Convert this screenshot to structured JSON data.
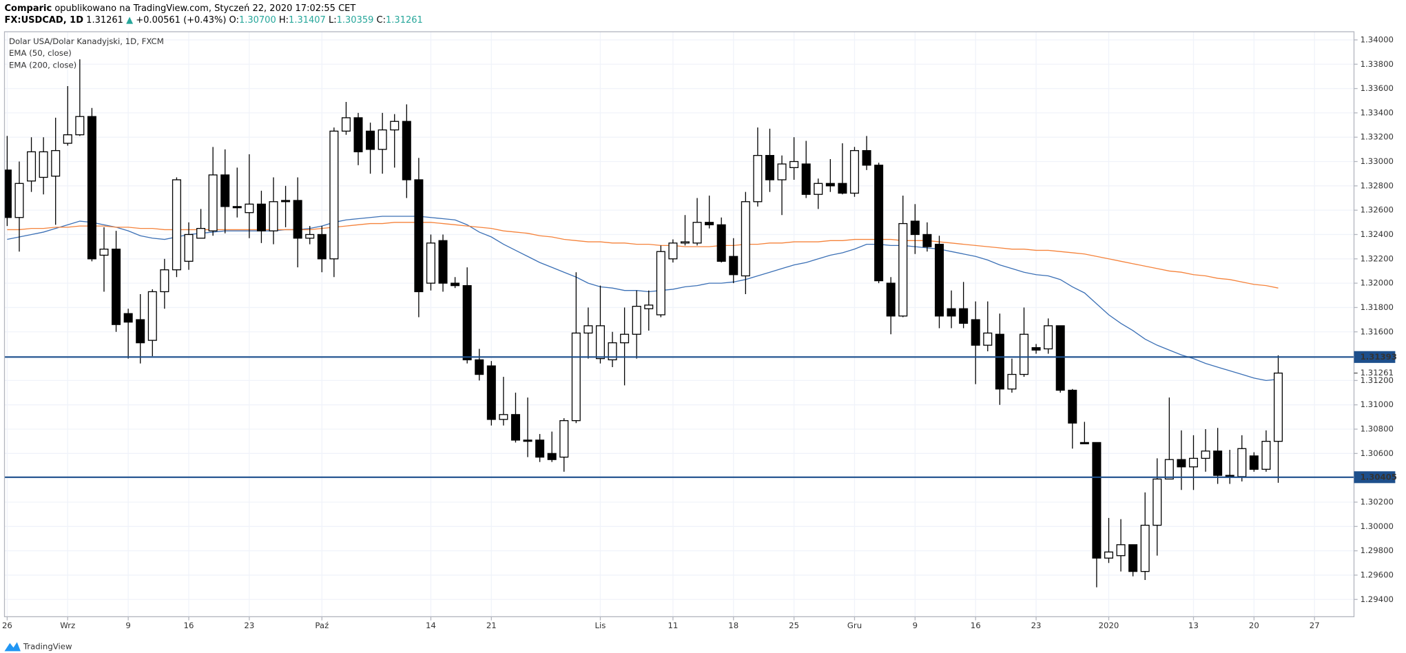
{
  "header": {
    "publisher": "Comparic",
    "published": "opublikowano na TradingView.com, Styczeń 22, 2020 17:02:55 CET",
    "symbol": "FX:USDCAD, 1D",
    "last": "1.31261",
    "change": "+0.00561 (+0.43%)",
    "ohlc": [
      {
        "label": "O:",
        "value": "1.30700"
      },
      {
        "label": "H:",
        "value": "1.31407"
      },
      {
        "label": "L:",
        "value": "1.30359"
      },
      {
        "label": "C:",
        "value": "1.31261"
      }
    ]
  },
  "footer": {
    "brand": "TradingView"
  },
  "chart_data": {
    "type": "candlestick",
    "title": "Dolar USA/Dolar Kanadyjski, 1D, FXCM",
    "categories": [
      "26",
      null,
      null,
      null,
      null,
      "Wrz",
      null,
      null,
      null,
      null,
      "9",
      null,
      null,
      null,
      null,
      "16",
      null,
      null,
      null,
      null,
      "23",
      null,
      null,
      null,
      null,
      null,
      "Paź",
      null,
      null,
      null,
      null,
      null,
      null,
      null,
      null,
      "14",
      null,
      null,
      null,
      null,
      "21",
      null,
      null,
      null,
      null,
      null,
      null,
      null,
      null,
      "Lis",
      null,
      null,
      null,
      null,
      null,
      "11",
      null,
      null,
      null,
      null,
      "18",
      null,
      null,
      null,
      null,
      "25",
      null,
      null,
      null,
      null,
      "Gru",
      null,
      null,
      null,
      null,
      "9",
      null,
      null,
      null,
      null,
      "16",
      null,
      null,
      null,
      null,
      "23",
      null,
      null,
      null,
      null,
      null,
      "2020",
      null,
      null,
      null,
      null,
      null,
      null,
      "13",
      null,
      null,
      null,
      null,
      "20",
      null,
      null,
      null,
      null,
      "27"
    ],
    "open": [
      1.3293,
      1.3254,
      1.3284,
      1.3287,
      1.3288,
      1.3315,
      1.3322,
      1.3337,
      1.3223,
      1.3228,
      1.3175,
      1.317,
      1.3153,
      1.3193,
      1.3211,
      1.3218,
      1.3237,
      1.3243,
      1.3289,
      1.3263,
      1.3258,
      1.3265,
      1.3243,
      1.3268,
      1.3268,
      1.3237,
      1.324,
      1.322,
      1.3325,
      1.3336,
      1.3325,
      1.331,
      1.3326,
      1.3333,
      1.3285,
      1.32,
      1.3235,
      1.32,
      1.3198,
      1.3137,
      1.3132,
      1.3088,
      1.3092,
      1.3071,
      1.3071,
      1.306,
      1.3057,
      1.3087,
      1.3159,
      1.3138,
      1.3137,
      1.3151,
      1.3158,
      1.3179,
      1.3174,
      1.322,
      1.3233,
      1.3233,
      1.325,
      1.3248,
      1.3222,
      1.3206,
      1.3267,
      1.3305,
      1.3285,
      1.3295,
      1.3298,
      1.3273,
      1.3282,
      1.3282,
      1.3274,
      1.3309,
      1.3297,
      1.32,
      1.3173,
      1.3251,
      1.324,
      1.3232,
      1.3179,
      1.3179,
      1.317,
      1.3149,
      1.3158,
      1.3113,
      1.3125,
      1.3147,
      1.3146,
      1.3165,
      1.3112,
      1.3069,
      1.3069,
      1.2974,
      1.2976,
      1.2985,
      1.2963,
      1.3001,
      1.3039,
      1.3055,
      1.3049,
      1.3056,
      1.3062,
      1.3042,
      1.3041,
      1.3058,
      1.3047,
      1.307,
      null,
      null,
      null
    ],
    "close": [
      1.3254,
      1.3282,
      1.3308,
      1.3308,
      1.3309,
      1.3322,
      1.3337,
      1.322,
      1.3228,
      1.3166,
      1.3168,
      1.3151,
      1.3193,
      1.3211,
      1.3285,
      1.324,
      1.3245,
      1.3289,
      1.3263,
      1.3262,
      1.3265,
      1.3243,
      1.3267,
      1.3267,
      1.3237,
      1.324,
      1.322,
      1.3325,
      1.3336,
      1.3308,
      1.331,
      1.3326,
      1.3333,
      1.3285,
      1.3193,
      1.3233,
      1.32,
      1.3198,
      1.3137,
      1.3125,
      1.3088,
      1.3092,
      1.3071,
      1.307,
      1.3057,
      1.3055,
      1.3087,
      1.3159,
      1.3165,
      1.3165,
      1.3151,
      1.3158,
      1.3181,
      1.3182,
      1.3226,
      1.3233,
      1.3234,
      1.325,
      1.3248,
      1.3218,
      1.3207,
      1.3267,
      1.3305,
      1.3285,
      1.3298,
      1.33,
      1.3273,
      1.3282,
      1.328,
      1.3274,
      1.3309,
      1.3297,
      1.3202,
      1.3173,
      1.3249,
      1.324,
      1.323,
      1.3173,
      1.3173,
      1.3167,
      1.3149,
      1.3159,
      1.3113,
      1.3125,
      1.3158,
      1.3145,
      1.3165,
      1.3112,
      1.3085,
      1.3068,
      1.2974,
      1.2979,
      1.2985,
      1.2963,
      1.3001,
      1.3039,
      1.3055,
      1.3049,
      1.3056,
      1.3062,
      1.3042,
      1.3041,
      1.3064,
      1.3047,
      1.307,
      1.31261,
      null,
      null,
      null
    ],
    "high": [
      1.3321,
      1.33,
      1.332,
      1.332,
      1.3336,
      1.3362,
      1.3384,
      1.3344,
      1.3246,
      1.3243,
      1.3179,
      1.3191,
      1.3195,
      1.322,
      1.3287,
      1.325,
      1.3261,
      1.3312,
      1.331,
      1.3295,
      1.3306,
      1.3276,
      1.3287,
      1.328,
      1.3287,
      1.3247,
      1.3247,
      1.3328,
      1.3349,
      1.334,
      1.3332,
      1.334,
      1.3339,
      1.3347,
      1.3303,
      1.324,
      1.324,
      1.3205,
      1.3213,
      1.3146,
      1.3136,
      1.3123,
      1.311,
      1.3106,
      1.3076,
      1.3078,
      1.3089,
      1.3209,
      1.318,
      1.3198,
      1.316,
      1.318,
      1.3194,
      1.3194,
      1.3231,
      1.3236,
      1.3256,
      1.327,
      1.3272,
      1.3254,
      1.3237,
      1.3275,
      1.3328,
      1.3327,
      1.3305,
      1.332,
      1.3317,
      1.3286,
      1.3302,
      1.3315,
      1.3312,
      1.3321,
      1.3299,
      1.3205,
      1.3272,
      1.3265,
      1.325,
      1.3239,
      1.3194,
      1.3201,
      1.3185,
      1.3185,
      1.3175,
      1.3138,
      1.318,
      1.315,
      1.3171,
      1.3165,
      1.3113,
      1.3086,
      1.3069,
      1.3007,
      1.3006,
      1.2985,
      1.3028,
      1.3056,
      1.3106,
      1.3079,
      1.3075,
      1.308,
      1.3081,
      1.3063,
      1.3075,
      1.3061,
      1.3079,
      1.31407,
      null,
      null,
      null
    ],
    "low": [
      1.3247,
      1.3226,
      1.3275,
      1.3273,
      1.3248,
      1.3313,
      1.3321,
      1.3218,
      1.3193,
      1.316,
      1.3138,
      1.3134,
      1.314,
      1.3179,
      1.3205,
      1.3211,
      1.3237,
      1.3239,
      1.3241,
      1.3254,
      1.3237,
      1.3233,
      1.3232,
      1.3246,
      1.3213,
      1.3232,
      1.3209,
      1.3205,
      1.3322,
      1.3297,
      1.329,
      1.329,
      1.3295,
      1.327,
      1.3172,
      1.3194,
      1.3193,
      1.3196,
      1.3134,
      1.312,
      1.3083,
      1.3083,
      1.3069,
      1.3057,
      1.3053,
      1.3053,
      1.3045,
      1.3085,
      1.3138,
      1.3134,
      1.3131,
      1.3116,
      1.3138,
      1.3161,
      1.3172,
      1.3217,
      1.3231,
      1.3231,
      1.3245,
      1.3217,
      1.32,
      1.3191,
      1.3263,
      1.3275,
      1.3256,
      1.3285,
      1.327,
      1.3261,
      1.3275,
      1.3273,
      1.3271,
      1.3293,
      1.32,
      1.3158,
      1.3172,
      1.3224,
      1.3226,
      1.3163,
      1.3163,
      1.3163,
      1.3117,
      1.3144,
      1.31,
      1.311,
      1.3123,
      1.3142,
      1.3142,
      1.311,
      1.3064,
      1.3068,
      1.295,
      1.297,
      1.2963,
      1.2959,
      1.2956,
      1.2976,
      1.3039,
      1.303,
      1.303,
      1.3045,
      1.3035,
      1.3035,
      1.3037,
      1.3045,
      1.3045,
      1.30359,
      null,
      null,
      null
    ],
    "up_color": "#ffffff",
    "down_color": "#000000",
    "series": [
      {
        "name": "EMA (50, close)",
        "color": "#3a6fb5",
        "values": [
          1.3236,
          1.3238,
          1.324,
          1.3242,
          1.3245,
          1.3248,
          1.3251,
          1.325,
          1.3248,
          1.3246,
          1.3243,
          1.3239,
          1.3237,
          1.3236,
          1.3238,
          1.324,
          1.3241,
          1.3242,
          1.3243,
          1.3243,
          1.3243,
          1.3243,
          1.3243,
          1.3244,
          1.3244,
          1.3245,
          1.3247,
          1.325,
          1.3252,
          1.3253,
          1.3254,
          1.3255,
          1.3255,
          1.3255,
          1.3255,
          1.3254,
          1.3253,
          1.3252,
          1.3248,
          1.3242,
          1.3238,
          1.3232,
          1.3227,
          1.3222,
          1.3217,
          1.3213,
          1.3209,
          1.3205,
          1.32,
          1.3197,
          1.3196,
          1.3194,
          1.3194,
          1.3193,
          1.3194,
          1.3195,
          1.3197,
          1.3198,
          1.32,
          1.32,
          1.3201,
          1.3203,
          1.3206,
          1.3209,
          1.3212,
          1.3215,
          1.3217,
          1.322,
          1.3223,
          1.3225,
          1.3228,
          1.3232,
          1.3232,
          1.3231,
          1.3231,
          1.323,
          1.3229,
          1.3228,
          1.3226,
          1.3224,
          1.3222,
          1.3219,
          1.3215,
          1.3212,
          1.3209,
          1.3207,
          1.3206,
          1.3203,
          1.3197,
          1.3192,
          1.3183,
          1.3174,
          1.3167,
          1.3161,
          1.3154,
          1.3149,
          1.3145,
          1.3141,
          1.3138,
          1.3134,
          1.3131,
          1.3128,
          1.3125,
          1.3122,
          1.312,
          1.3121,
          null,
          null,
          null
        ]
      },
      {
        "name": "EMA (200, close)",
        "color": "#f5823a",
        "values": [
          1.3244,
          1.3244,
          1.3245,
          1.3245,
          1.3246,
          1.3246,
          1.3247,
          1.3247,
          1.3247,
          1.3246,
          1.3246,
          1.3245,
          1.3245,
          1.3244,
          1.3244,
          1.3244,
          1.3244,
          1.3244,
          1.3244,
          1.3244,
          1.3244,
          1.3244,
          1.3244,
          1.3244,
          1.3244,
          1.3244,
          1.3245,
          1.3246,
          1.3247,
          1.3248,
          1.3249,
          1.3249,
          1.325,
          1.325,
          1.325,
          1.325,
          1.3249,
          1.3248,
          1.3247,
          1.3246,
          1.3245,
          1.3243,
          1.3242,
          1.3241,
          1.3239,
          1.3238,
          1.3236,
          1.3235,
          1.3234,
          1.3234,
          1.3233,
          1.3233,
          1.3232,
          1.3232,
          1.3231,
          1.3231,
          1.323,
          1.323,
          1.323,
          1.3231,
          1.3231,
          1.3232,
          1.3232,
          1.3233,
          1.3233,
          1.3234,
          1.3234,
          1.3234,
          1.3235,
          1.3235,
          1.3236,
          1.3236,
          1.3236,
          1.3236,
          1.3235,
          1.3235,
          1.3235,
          1.3234,
          1.3233,
          1.3232,
          1.3231,
          1.323,
          1.3229,
          1.3228,
          1.3228,
          1.3227,
          1.3227,
          1.3226,
          1.3225,
          1.3224,
          1.3222,
          1.322,
          1.3218,
          1.3216,
          1.3214,
          1.3212,
          1.321,
          1.3209,
          1.3207,
          1.3206,
          1.3204,
          1.3203,
          1.3201,
          1.3199,
          1.3198,
          1.3196,
          null,
          null,
          null
        ]
      }
    ],
    "ylim": [
      1.29258,
      1.34067
    ],
    "yticks": [
      {
        "value": 1.294,
        "label": "1.29400"
      },
      {
        "value": 1.296,
        "label": "1.29600"
      },
      {
        "value": 1.298,
        "label": "1.29800"
      },
      {
        "value": 1.3,
        "label": "1.30000"
      },
      {
        "value": 1.302,
        "label": "1.30200"
      },
      {
        "value": 1.304,
        "label": "1.30400"
      },
      {
        "value": 1.306,
        "label": "1.30600"
      },
      {
        "value": 1.308,
        "label": "1.30800"
      },
      {
        "value": 1.31,
        "label": "1.31000"
      },
      {
        "value": 1.312,
        "label": "1.31200"
      },
      {
        "value": 1.314,
        "label": "1.31400"
      },
      {
        "value": 1.316,
        "label": "1.31600"
      },
      {
        "value": 1.318,
        "label": "1.31800"
      },
      {
        "value": 1.32,
        "label": "1.32000"
      },
      {
        "value": 1.322,
        "label": "1.32200"
      },
      {
        "value": 1.324,
        "label": "1.32400"
      },
      {
        "value": 1.326,
        "label": "1.32600"
      },
      {
        "value": 1.328,
        "label": "1.32800"
      },
      {
        "value": 1.33,
        "label": "1.33000"
      },
      {
        "value": 1.332,
        "label": "1.33200"
      },
      {
        "value": 1.334,
        "label": "1.33400"
      },
      {
        "value": 1.336,
        "label": "1.33600"
      },
      {
        "value": 1.338,
        "label": "1.33800"
      },
      {
        "value": 1.34,
        "label": "1.34000"
      }
    ],
    "horizontal_lines": [
      {
        "value": 1.31393,
        "label": "1.31393"
      },
      {
        "value": 1.30405,
        "label": "1.30405"
      }
    ],
    "line_color": "#1d4f8c",
    "last_price": {
      "value": 1.31261,
      "label": "1.31261"
    },
    "grid": true
  }
}
